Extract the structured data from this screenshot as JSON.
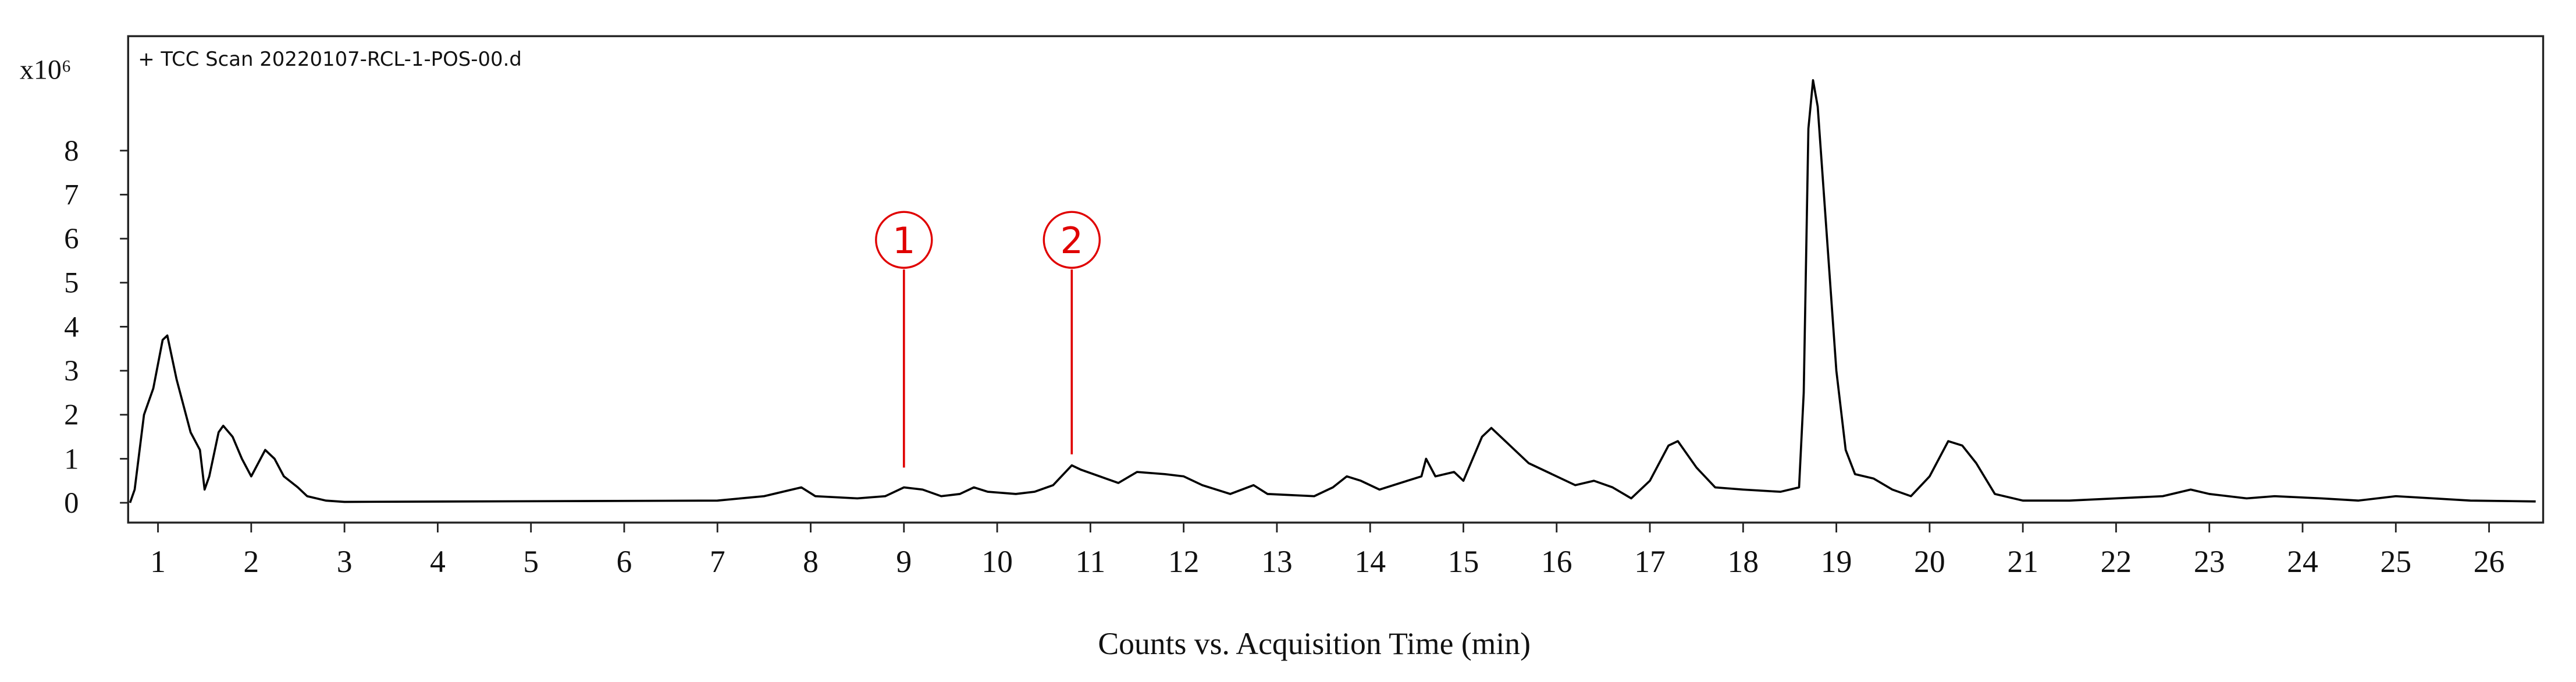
{
  "chart_data": {
    "type": "line",
    "title": "+ TCC Scan 20220107-RCL-1-POS-00.d",
    "y_multiplier": "x10⁶",
    "x_label": "Counts vs. Acquisition Time (min)",
    "x": [
      0.7,
      0.75,
      0.85,
      0.95,
      1.05,
      1.1,
      1.2,
      1.35,
      1.45,
      1.5,
      1.55,
      1.65,
      1.7,
      1.8,
      1.9,
      2.0,
      2.1,
      2.15,
      2.25,
      2.35,
      2.5,
      2.6,
      2.8,
      3.0,
      7.0,
      7.5,
      7.8,
      7.9,
      8.05,
      8.5,
      8.8,
      9.0,
      9.2,
      9.4,
      9.6,
      9.75,
      9.9,
      10.2,
      10.4,
      10.6,
      10.8,
      10.9,
      11.1,
      11.3,
      11.5,
      11.8,
      12.0,
      12.2,
      12.5,
      12.75,
      12.9,
      13.4,
      13.6,
      13.75,
      13.9,
      14.1,
      14.4,
      14.55,
      14.6,
      14.7,
      14.9,
      15.0,
      15.2,
      15.3,
      15.5,
      15.7,
      16.0,
      16.2,
      16.4,
      16.6,
      16.8,
      17.0,
      17.2,
      17.3,
      17.5,
      17.7,
      18.0,
      18.4,
      18.6,
      18.65,
      18.7,
      18.75,
      18.8,
      18.9,
      19.0,
      19.1,
      19.2,
      19.4,
      19.6,
      19.8,
      20.0,
      20.2,
      20.35,
      20.5,
      20.7,
      21.0,
      21.5,
      22.0,
      22.5,
      22.8,
      23.0,
      23.4,
      23.7,
      24.2,
      24.6,
      25.0,
      25.4,
      25.8,
      26.5
    ],
    "series": [
      {
        "name": "TCC",
        "color": "#000000",
        "values": [
          0.0,
          0.3,
          2.0,
          2.6,
          3.7,
          3.8,
          2.8,
          1.6,
          1.2,
          0.3,
          0.6,
          1.6,
          1.75,
          1.5,
          1.0,
          0.6,
          1.0,
          1.2,
          1.0,
          0.6,
          0.35,
          0.15,
          0.05,
          0.02,
          0.05,
          0.15,
          0.3,
          0.35,
          0.15,
          0.1,
          0.15,
          0.35,
          0.3,
          0.15,
          0.2,
          0.35,
          0.25,
          0.2,
          0.25,
          0.4,
          0.85,
          0.75,
          0.6,
          0.45,
          0.7,
          0.65,
          0.6,
          0.4,
          0.2,
          0.4,
          0.2,
          0.15,
          0.35,
          0.6,
          0.5,
          0.3,
          0.5,
          0.6,
          1.0,
          0.6,
          0.7,
          0.5,
          1.5,
          1.7,
          1.3,
          0.9,
          0.6,
          0.4,
          0.5,
          0.35,
          0.1,
          0.5,
          1.3,
          1.4,
          0.8,
          0.35,
          0.3,
          0.25,
          0.35,
          2.5,
          8.5,
          9.6,
          9.0,
          6.0,
          3.0,
          1.2,
          0.65,
          0.55,
          0.3,
          0.15,
          0.6,
          1.4,
          1.3,
          0.9,
          0.2,
          0.05,
          0.05,
          0.1,
          0.15,
          0.3,
          0.2,
          0.1,
          0.15,
          0.1,
          0.05,
          0.15,
          0.1,
          0.05,
          0.03
        ]
      }
    ],
    "xlim": [
      0.68,
      26.58
    ],
    "ylim": [
      -0.45,
      10.6
    ],
    "xticks": [
      1,
      2,
      3,
      4,
      5,
      6,
      7,
      8,
      9,
      10,
      11,
      12,
      13,
      14,
      15,
      16,
      17,
      18,
      19,
      20,
      21,
      22,
      23,
      24,
      25,
      26
    ],
    "yticks": [
      0,
      1,
      2,
      3,
      4,
      5,
      6,
      7,
      8
    ],
    "annotations": [
      {
        "text": "1",
        "x": 9.0,
        "y": 0.8,
        "color": "#e00000"
      },
      {
        "text": "2",
        "x": 10.8,
        "y": 1.1,
        "color": "#e00000"
      }
    ]
  }
}
